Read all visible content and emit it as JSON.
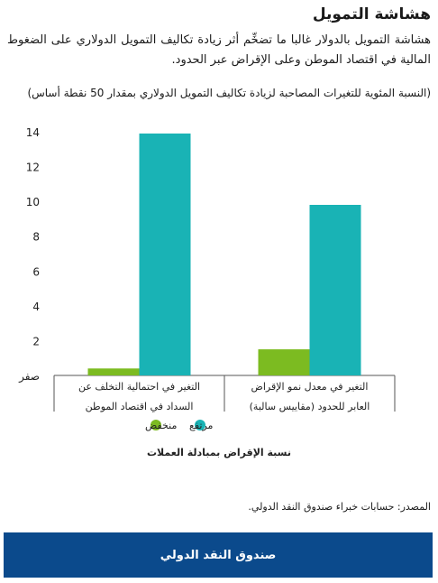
{
  "header": {
    "title": "هشاشة التمويل",
    "subtitle": "هشاشة التمويل بالدولار غالبا ما تضخِّم أثر زيادة تكاليف التمويل الدولاري على الضغوط المالية في اقتصاد الموطن وعلى الإقراض عبر الحدود.",
    "note": "(النسبة المئوية للتغيرات المصاحبة لزيادة تكاليف التمويل الدولاري بمقدار 50 نقطة أساس)"
  },
  "chart_data": {
    "type": "bar",
    "categories": [
      [
        "التغير في احتمالية التخلف عن",
        "السداد في اقتصاد الموطن"
      ],
      [
        "التغير في معدل نمو الإقراض",
        "العابر للحدود (مقاييس سالبة)"
      ]
    ],
    "series": [
      {
        "name": "منخفض",
        "color": "#7cbb21",
        "values": [
          0.4,
          1.5
        ]
      },
      {
        "name": "مرتفع",
        "color": "#19b3b5",
        "values": [
          13.9,
          9.8
        ]
      }
    ],
    "ylim": [
      0,
      14
    ],
    "yticks": [
      {
        "value": 0,
        "label": "صفر"
      },
      {
        "value": 2,
        "label": "2"
      },
      {
        "value": 4,
        "label": "4"
      },
      {
        "value": 6,
        "label": "6"
      },
      {
        "value": 8,
        "label": "8"
      },
      {
        "value": 10,
        "label": "10"
      },
      {
        "value": 12,
        "label": "12"
      },
      {
        "value": 14,
        "label": "14"
      }
    ],
    "legend_title": "نسبة الإقراض بمبادلة العملات",
    "legend_position": "bottom",
    "grid": false
  },
  "source": "المصدر: حسابات خبراء صندوق النقد الدولي.",
  "footer": {
    "label": "صندوق النقد الدولي"
  }
}
